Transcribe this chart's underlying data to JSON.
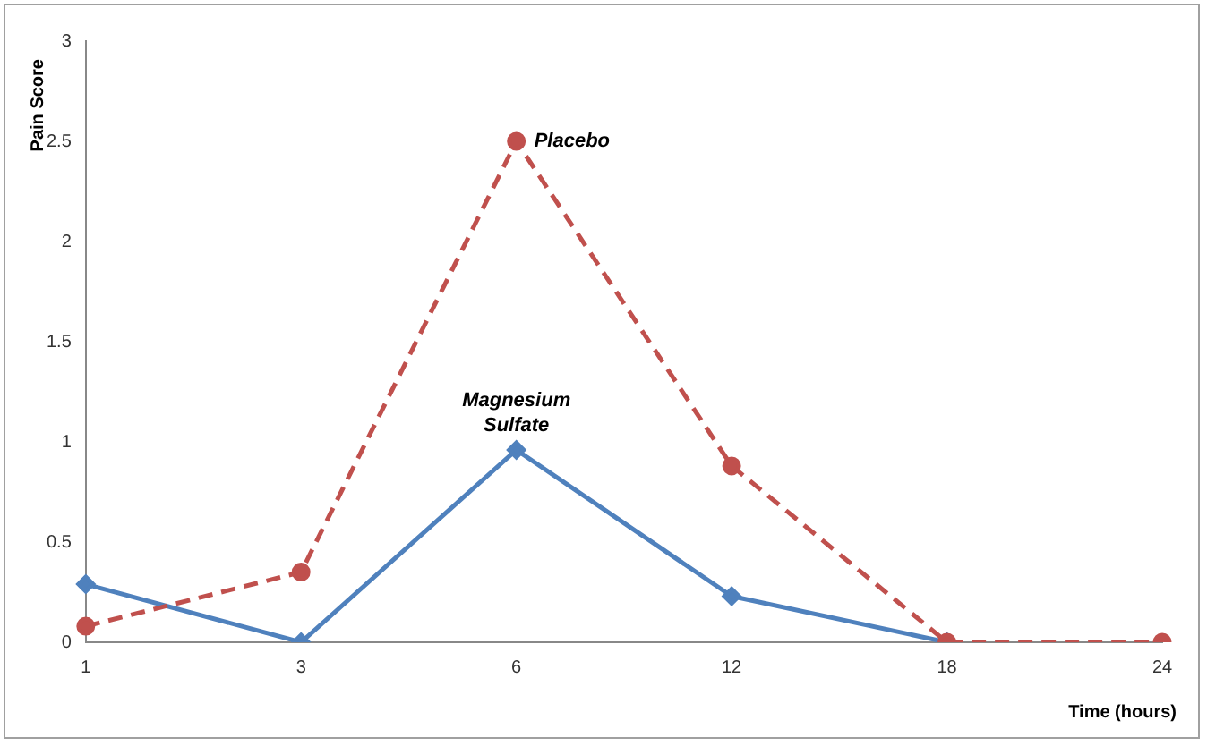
{
  "chart_data": {
    "type": "line",
    "xlabel": "Time (hours)",
    "ylabel": "Pain Score",
    "categories": [
      "1",
      "3",
      "6",
      "12",
      "18",
      "24"
    ],
    "series": [
      {
        "name": "Placebo",
        "color": "#c0504d",
        "values": [
          0.08,
          0.35,
          2.5,
          0.88,
          0,
          0
        ],
        "marker": "circle",
        "line_style": "dashed"
      },
      {
        "name": "Magnesium Sulfate",
        "color": "#4f81bd",
        "values": [
          0.29,
          0,
          0.96,
          0.23,
          0,
          null
        ],
        "marker": "diamond",
        "line_style": "solid"
      }
    ],
    "ylim": [
      0,
      3
    ],
    "yticks": [
      0,
      0.5,
      1,
      1.5,
      2,
      2.5,
      3
    ],
    "grid": false,
    "legend": false
  }
}
